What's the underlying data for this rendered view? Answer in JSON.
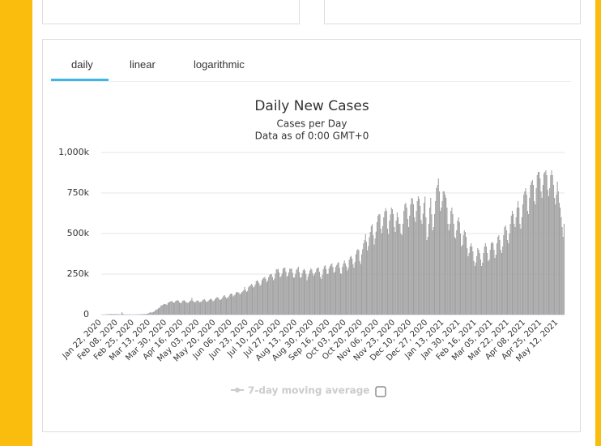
{
  "tabs": [
    "daily",
    "linear",
    "logarithmic"
  ],
  "active_tab": 0,
  "chart_data": {
    "type": "bar",
    "title": "Daily New Cases",
    "subtitle": [
      "Cases per Day",
      "Data as of 0:00 GMT+0"
    ],
    "color": "#a0a0a0",
    "grid": true,
    "ylim": [
      0,
      1000000
    ],
    "yticks": [
      0,
      {
        "value": 250000,
        "label": "250k"
      },
      {
        "value": 500000,
        "label": "500k"
      },
      {
        "value": 750000,
        "label": "750k"
      },
      {
        "value": 1000000,
        "label": "1,000k"
      }
    ],
    "moving_average": {
      "name": "7-day moving average",
      "shown": false
    },
    "categories": [
      "Jan 22, 2020",
      null,
      null,
      null,
      null,
      null,
      null,
      null,
      null,
      null,
      null,
      null,
      null,
      null,
      null,
      null,
      null,
      "Feb 08, 2020",
      null,
      null,
      null,
      null,
      null,
      null,
      null,
      null,
      null,
      null,
      null,
      null,
      null,
      null,
      null,
      null,
      "Feb 25, 2020",
      null,
      null,
      null,
      null,
      null,
      null,
      null,
      null,
      null,
      null,
      null,
      null,
      null,
      null,
      null,
      null,
      "Mar 13, 2020",
      null,
      null,
      null,
      null,
      null,
      null,
      null,
      null,
      null,
      null,
      null,
      null,
      null,
      null,
      null,
      null,
      "Mar 30, 2020",
      null,
      null,
      null,
      null,
      null,
      null,
      null,
      null,
      null,
      null,
      null,
      null,
      null,
      null,
      null,
      null,
      "Apr 16, 2020",
      null,
      null,
      null,
      null,
      null,
      null,
      null,
      null,
      null,
      null,
      null,
      null,
      null,
      null,
      null,
      null,
      "May 03, 2020",
      null,
      null,
      null,
      null,
      null,
      null,
      null,
      null,
      null,
      null,
      null,
      null,
      null,
      null,
      null,
      null,
      "May 20, 2020",
      null,
      null,
      null,
      null,
      null,
      null,
      null,
      null,
      null,
      null,
      null,
      null,
      null,
      null,
      null,
      null,
      "Jun 06, 2020",
      null,
      null,
      null,
      null,
      null,
      null,
      null,
      null,
      null,
      null,
      null,
      null,
      null,
      null,
      null,
      null,
      "Jun 23, 2020",
      null,
      null,
      null,
      null,
      null,
      null,
      null,
      null,
      null,
      null,
      null,
      null,
      null,
      null,
      null,
      null,
      "Jul 10, 2020",
      null,
      null,
      null,
      null,
      null,
      null,
      null,
      null,
      null,
      null,
      null,
      null,
      null,
      null,
      null,
      null,
      "Jul 27, 2020",
      null,
      null,
      null,
      null,
      null,
      null,
      null,
      null,
      null,
      null,
      null,
      null,
      null,
      null,
      null,
      null,
      "Aug 13, 2020",
      null,
      null,
      null,
      null,
      null,
      null,
      null,
      null,
      null,
      null,
      null,
      null,
      null,
      null,
      null,
      null,
      "Aug 30, 2020",
      null,
      null,
      null,
      null,
      null,
      null,
      null,
      null,
      null,
      null,
      null,
      null,
      null,
      null,
      null,
      null,
      "Sep 16, 2020",
      null,
      null,
      null,
      null,
      null,
      null,
      null,
      null,
      null,
      null,
      null,
      null,
      null,
      null,
      null,
      null,
      "Oct 03, 2020",
      null,
      null,
      null,
      null,
      null,
      null,
      null,
      null,
      null,
      null,
      null,
      null,
      null,
      null,
      null,
      null,
      "Oct 20, 2020",
      null,
      null,
      null,
      null,
      null,
      null,
      null,
      null,
      null,
      null,
      null,
      null,
      null,
      null,
      null,
      null,
      "Nov 06, 2020",
      null,
      null,
      null,
      null,
      null,
      null,
      null,
      null,
      null,
      null,
      null,
      null,
      null,
      null,
      null,
      null,
      "Nov 23, 2020",
      null,
      null,
      null,
      null,
      null,
      null,
      null,
      null,
      null,
      null,
      null,
      null,
      null,
      null,
      null,
      null,
      "Dec 10, 2020",
      null,
      null,
      null,
      null,
      null,
      null,
      null,
      null,
      null,
      null,
      null,
      null,
      null,
      null,
      null,
      null,
      "Dec 27, 2020",
      null,
      null,
      null,
      null,
      null,
      null,
      null,
      null,
      null,
      null,
      null,
      null,
      null,
      null,
      null,
      null,
      "Jan 13, 2021",
      null,
      null,
      null,
      null,
      null,
      null,
      null,
      null,
      null,
      null,
      null,
      null,
      null,
      null,
      null,
      null,
      "Jan 30, 2021",
      null,
      null,
      null,
      null,
      null,
      null,
      null,
      null,
      null,
      null,
      null,
      null,
      null,
      null,
      null,
      null,
      "Feb 16, 2021",
      null,
      null,
      null,
      null,
      null,
      null,
      null,
      null,
      null,
      null,
      null,
      null,
      null,
      null,
      null,
      null,
      "Mar 05, 2021",
      null,
      null,
      null,
      null,
      null,
      null,
      null,
      null,
      null,
      null,
      null,
      null,
      null,
      null,
      null,
      null,
      "Mar 22, 2021",
      null,
      null,
      null,
      null,
      null,
      null,
      null,
      null,
      null,
      null,
      null,
      null,
      null,
      null,
      null,
      null,
      "Apr 08, 2021",
      null,
      null,
      null,
      null,
      null,
      null,
      null,
      null,
      null,
      null,
      null,
      null,
      null,
      null,
      null,
      null,
      "Apr 25, 2021",
      null,
      null,
      null,
      null,
      null,
      null,
      null,
      null,
      null,
      null,
      null,
      null,
      null,
      null,
      null,
      null,
      "May 12, 2021",
      null,
      null,
      null,
      null,
      null,
      null
    ],
    "values": [
      0,
      0,
      1000,
      0,
      1000,
      2000,
      2000,
      3000,
      3000,
      4000,
      4000,
      4000,
      3000,
      4000,
      4000,
      3000,
      3000,
      3000,
      3000,
      2000,
      2000,
      15000,
      6000,
      2000,
      2000,
      2000,
      1000,
      1000,
      1000,
      1000,
      1000,
      1000,
      1000,
      1000,
      1000,
      1000,
      1000,
      2000,
      2000,
      2000,
      2000,
      3000,
      3000,
      3000,
      4000,
      4000,
      4000,
      5000,
      7000,
      9000,
      12000,
      16000,
      12000,
      14000,
      17000,
      20000,
      28000,
      31000,
      33000,
      39000,
      41000,
      49000,
      58000,
      57000,
      62000,
      66000,
      65000,
      64000,
      60000,
      72000,
      76000,
      80000,
      82000,
      84000,
      78000,
      74000,
      74000,
      84000,
      86000,
      90000,
      86000,
      76000,
      72000,
      72000,
      84000,
      87000,
      88000,
      82000,
      78000,
      72000,
      74000,
      76000,
      84000,
      88000,
      104000,
      86000,
      80000,
      76000,
      78000,
      86000,
      88000,
      84000,
      76000,
      78000,
      80000,
      88000,
      92000,
      96000,
      88000,
      78000,
      80000,
      84000,
      90000,
      96000,
      98000,
      92000,
      82000,
      86000,
      94000,
      102000,
      106000,
      108000,
      100000,
      90000,
      92000,
      96000,
      106000,
      116000,
      120000,
      110000,
      100000,
      104000,
      108000,
      118000,
      128000,
      130000,
      126000,
      112000,
      118000,
      124000,
      136000,
      140000,
      138000,
      136000,
      124000,
      130000,
      138000,
      144000,
      150000,
      170000,
      152000,
      140000,
      146000,
      168000,
      176000,
      180000,
      190000,
      182000,
      168000,
      172000,
      186000,
      206000,
      212000,
      206000,
      194000,
      178000,
      186000,
      212000,
      222000,
      228000,
      232000,
      220000,
      200000,
      210000,
      230000,
      244000,
      250000,
      250000,
      232000,
      212000,
      222000,
      252000,
      280000,
      278000,
      282000,
      260000,
      230000,
      238000,
      254000,
      282000,
      290000,
      290000,
      266000,
      234000,
      240000,
      260000,
      282000,
      284000,
      284000,
      258000,
      228000,
      230000,
      252000,
      276000,
      286000,
      296000,
      262000,
      228000,
      230000,
      256000,
      274000,
      282000,
      272000,
      250000,
      212000,
      234000,
      250000,
      272000,
      286000,
      278000,
      256000,
      240000,
      252000,
      262000,
      282000,
      290000,
      290000,
      264000,
      232000,
      220000,
      246000,
      280000,
      298000,
      304000,
      282000,
      250000,
      252000,
      286000,
      300000,
      310000,
      316000,
      294000,
      258000,
      264000,
      294000,
      306000,
      318000,
      324000,
      288000,
      254000,
      252000,
      296000,
      316000,
      334000,
      316000,
      298000,
      272000,
      288000,
      338000,
      356000,
      362000,
      346000,
      312000,
      290000,
      324000,
      372000,
      396000,
      404000,
      398000,
      330000,
      312000,
      372000,
      404000,
      440000,
      460000,
      496000,
      450000,
      396000,
      424000,
      478000,
      510000,
      546000,
      558000,
      490000,
      432000,
      470000,
      512000,
      570000,
      610000,
      620000,
      618000,
      530000,
      502000,
      546000,
      600000,
      636000,
      656000,
      640000,
      530000,
      496000,
      580000,
      618000,
      660000,
      650000,
      620000,
      540000,
      510000,
      580000,
      630000,
      600000,
      560000,
      560000,
      500000,
      490000,
      560000,
      640000,
      680000,
      690000,
      660000,
      590000,
      540000,
      610000,
      680000,
      720000,
      716000,
      680000,
      600000,
      572000,
      640000,
      700000,
      730000,
      714000,
      670000,
      584000,
      560000,
      622000,
      690000,
      728000,
      600000,
      460000,
      480000,
      560000,
      660000,
      720000,
      618000,
      520000,
      540000,
      620000,
      700000,
      780000,
      800000,
      840000,
      760000,
      640000,
      660000,
      700000,
      760000,
      760000,
      740000,
      720000,
      660000,
      560000,
      520000,
      560000,
      640000,
      660000,
      620000,
      560000,
      480000,
      470000,
      520000,
      580000,
      600000,
      570000,
      500000,
      420000,
      430000,
      490000,
      520000,
      510000,
      480000,
      410000,
      360000,
      380000,
      420000,
      440000,
      420000,
      390000,
      330000,
      300000,
      320000,
      360000,
      410000,
      400000,
      380000,
      340000,
      300000,
      320000,
      380000,
      420000,
      440000,
      420000,
      380000,
      330000,
      340000,
      400000,
      440000,
      450000,
      440000,
      400000,
      350000,
      370000,
      440000,
      480000,
      490000,
      460000,
      400000,
      380000,
      420000,
      490000,
      540000,
      550000,
      520000,
      460000,
      440000,
      500000,
      560000,
      610000,
      640000,
      620000,
      560000,
      540000,
      600000,
      660000,
      700000,
      660000,
      560000,
      530000,
      600000,
      680000,
      740000,
      760000,
      780000,
      740000,
      640000,
      620000,
      720000,
      800000,
      820000,
      830000,
      800000,
      700000,
      680000,
      780000,
      860000,
      880000,
      880000,
      840000,
      760000,
      720000,
      800000,
      870000,
      880000,
      890000,
      860000,
      770000,
      730000,
      780000,
      860000,
      890000,
      860000,
      800000,
      720000,
      680000,
      740000,
      820000,
      760000,
      690000,
      660000,
      600000,
      540000,
      480000,
      560000
    ]
  }
}
